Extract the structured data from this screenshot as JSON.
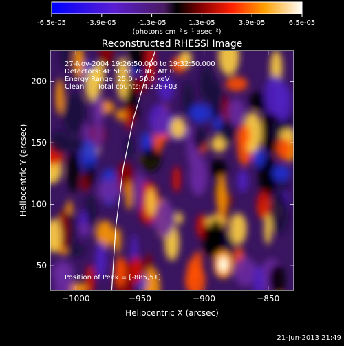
{
  "colorbar": {
    "ticks": [
      "-6.5e-05",
      "-3.9e-05",
      "-1.3e-05",
      "1.3e-05",
      "3.9e-05",
      "6.5e-05"
    ],
    "unit_label": "(photons cm⁻² s⁻¹ asec⁻²)",
    "range": [
      -6.5e-05,
      6.5e-05
    ]
  },
  "chart_data": {
    "type": "heatmap",
    "title": "Reconstructed RHESSI Image",
    "xlabel": "Heliocentric X (arcsec)",
    "ylabel": "Heliocentric Y (arcsec)",
    "xlim": [
      -1020,
      -830
    ],
    "ylim": [
      30,
      225
    ],
    "xticks": [
      -1000,
      -950,
      -900,
      -850
    ],
    "yticks": [
      50,
      100,
      150,
      200
    ],
    "xtick_labels": [
      "−1000",
      "−950",
      "−900",
      "−850"
    ],
    "ytick_labels": [
      "50",
      "100",
      "150",
      "200"
    ],
    "annotations": [
      "27-Nov-2004 19:26:50.000 to 19:32:50.000",
      "Detectors: 4F 5F 6F 7F 8F, Att 0",
      "Energy Range: 25.0 - 50.0 keV",
      "Clean      Total counts: 4.32E+03"
    ],
    "peak_label": "Position of Peak = [-885,51]",
    "peak": [
      -885,
      51
    ],
    "limb_curve": [
      [
        -972,
        30
      ],
      [
        -969,
        80
      ],
      [
        -963,
        130
      ],
      [
        -955,
        170
      ],
      [
        -945,
        205
      ],
      [
        -938,
        225
      ]
    ]
  },
  "footer": {
    "timestamp": "21-Jun-2013 21:49"
  }
}
